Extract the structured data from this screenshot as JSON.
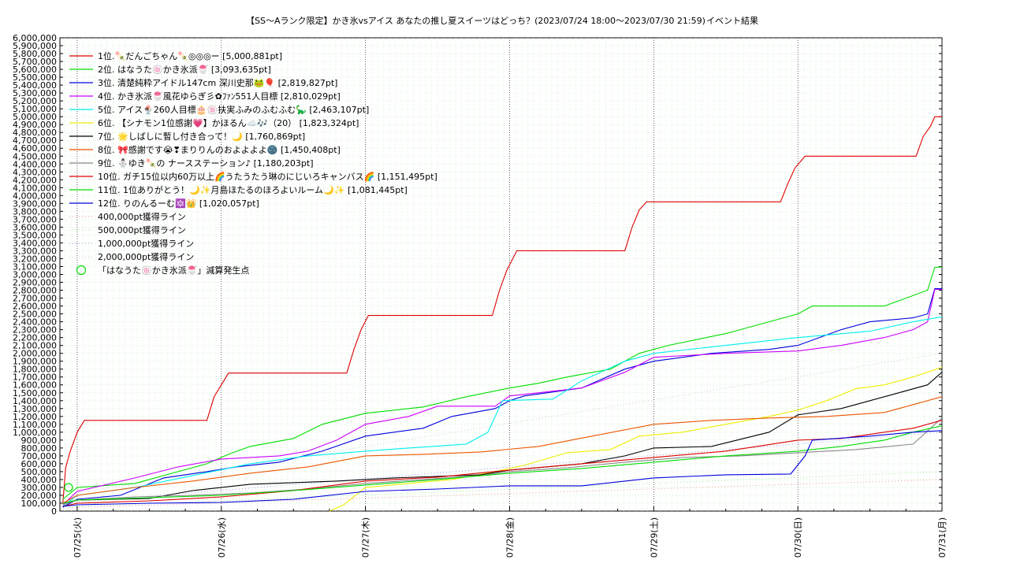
{
  "chart_data": {
    "type": "line",
    "title": "【SS～Aランク限定】かき氷vsアイス あなたの推し夏スイーツはどっち？(2023/07/24 18:00～2023/07/30 21:59)",
    "subtitle": "イベント結果",
    "xlabel": "",
    "ylabel": "",
    "x_ticks": [
      "07/25(火)",
      "07/26(水)",
      "07/27(木)",
      "07/28(金)",
      "07/29(土)",
      "07/30(日)",
      "07/31(月)"
    ],
    "xlim": [
      -0.12,
      6.0
    ],
    "ylim": [
      0,
      6000000
    ],
    "y_step": 100000,
    "grid": true,
    "legend_position": "top-left",
    "series": [
      {
        "name": "1位.🍡だんごちゃん🍡◎◎◎ー [5,000,881pt]",
        "color": "#dd0000",
        "points": [
          [
            -0.1,
            100000
          ],
          [
            -0.08,
            550000
          ],
          [
            -0.05,
            750000
          ],
          [
            -0.02,
            900000
          ],
          [
            0.0,
            1000000
          ],
          [
            0.05,
            1150000
          ],
          [
            0.9,
            1150000
          ],
          [
            0.95,
            1450000
          ],
          [
            1.0,
            1600000
          ],
          [
            1.05,
            1750000
          ],
          [
            1.87,
            1750000
          ],
          [
            1.92,
            2050000
          ],
          [
            1.97,
            2300000
          ],
          [
            2.02,
            2480000
          ],
          [
            2.88,
            2480000
          ],
          [
            2.93,
            2800000
          ],
          [
            2.98,
            3050000
          ],
          [
            3.05,
            3300000
          ],
          [
            3.8,
            3300000
          ],
          [
            3.85,
            3600000
          ],
          [
            3.9,
            3820000
          ],
          [
            3.95,
            3920000
          ],
          [
            4.88,
            3920000
          ],
          [
            4.93,
            4150000
          ],
          [
            4.98,
            4350000
          ],
          [
            5.05,
            4500000
          ],
          [
            5.82,
            4500000
          ],
          [
            5.87,
            4750000
          ],
          [
            5.92,
            4880000
          ],
          [
            5.95,
            5000000
          ],
          [
            6.0,
            5000000
          ]
        ]
      },
      {
        "name": "2位. はなうた🍥かき氷派🍧 [3,093,635pt]",
        "color": "#00dd00",
        "points": [
          [
            -0.1,
            150000
          ],
          [
            0.0,
            300000
          ],
          [
            0.4,
            350000
          ],
          [
            0.7,
            500000
          ],
          [
            0.9,
            600000
          ],
          [
            1.05,
            720000
          ],
          [
            1.2,
            820000
          ],
          [
            1.5,
            920000
          ],
          [
            1.7,
            1100000
          ],
          [
            2.0,
            1240000
          ],
          [
            2.4,
            1320000
          ],
          [
            2.7,
            1450000
          ],
          [
            3.0,
            1560000
          ],
          [
            3.2,
            1620000
          ],
          [
            3.4,
            1700000
          ],
          [
            3.7,
            1800000
          ],
          [
            3.9,
            2000000
          ],
          [
            4.1,
            2100000
          ],
          [
            4.5,
            2250000
          ],
          [
            4.8,
            2400000
          ],
          [
            5.0,
            2500000
          ],
          [
            5.1,
            2600000
          ],
          [
            5.6,
            2600000
          ],
          [
            5.75,
            2700000
          ],
          [
            5.9,
            2800000
          ],
          [
            5.95,
            3090000
          ],
          [
            6.0,
            3093635
          ]
        ]
      },
      {
        "name": "3位. 清楚純粋アイドル147cm 深川史那🐸🎈 [2,819,827pt]",
        "color": "#0000dd",
        "points": [
          [
            -0.1,
            50000
          ],
          [
            0.0,
            150000
          ],
          [
            0.3,
            200000
          ],
          [
            0.6,
            420000
          ],
          [
            0.9,
            500000
          ],
          [
            1.1,
            560000
          ],
          [
            1.4,
            620000
          ],
          [
            1.7,
            760000
          ],
          [
            2.0,
            950000
          ],
          [
            2.4,
            1050000
          ],
          [
            2.6,
            1200000
          ],
          [
            2.9,
            1300000
          ],
          [
            3.0,
            1400000
          ],
          [
            3.1,
            1460000
          ],
          [
            3.5,
            1560000
          ],
          [
            3.8,
            1800000
          ],
          [
            4.0,
            1900000
          ],
          [
            4.4,
            2000000
          ],
          [
            4.8,
            2050000
          ],
          [
            5.0,
            2100000
          ],
          [
            5.3,
            2300000
          ],
          [
            5.5,
            2400000
          ],
          [
            5.8,
            2450000
          ],
          [
            5.9,
            2500000
          ],
          [
            5.95,
            2820000
          ],
          [
            6.0,
            2819827
          ]
        ]
      },
      {
        "name": "4位. かき氷派🍧風花ゆらぎ彡✿ﾌｧﾝ551人目標 [2,810,029pt]",
        "color": "#cc00ff",
        "points": [
          [
            -0.1,
            80000
          ],
          [
            0.0,
            250000
          ],
          [
            0.4,
            420000
          ],
          [
            0.7,
            560000
          ],
          [
            1.0,
            660000
          ],
          [
            1.4,
            700000
          ],
          [
            1.6,
            760000
          ],
          [
            1.8,
            900000
          ],
          [
            2.0,
            1100000
          ],
          [
            2.3,
            1200000
          ],
          [
            2.5,
            1330000
          ],
          [
            2.9,
            1330000
          ],
          [
            3.0,
            1460000
          ],
          [
            3.5,
            1560000
          ],
          [
            3.8,
            1760000
          ],
          [
            4.0,
            1950000
          ],
          [
            4.5,
            2000000
          ],
          [
            5.0,
            2030000
          ],
          [
            5.3,
            2100000
          ],
          [
            5.6,
            2200000
          ],
          [
            5.8,
            2300000
          ],
          [
            5.9,
            2400000
          ],
          [
            5.95,
            2810000
          ],
          [
            6.0,
            2810029
          ]
        ]
      },
      {
        "name": "5位. アイス🍨260人目標🎂🍥扶実ふみのふむふむ🦕 [2,463,107pt]",
        "color": "#00eeee",
        "points": [
          [
            -0.1,
            60000
          ],
          [
            0.0,
            200000
          ],
          [
            0.4,
            300000
          ],
          [
            0.8,
            450000
          ],
          [
            1.2,
            600000
          ],
          [
            1.6,
            700000
          ],
          [
            2.0,
            760000
          ],
          [
            2.3,
            800000
          ],
          [
            2.7,
            850000
          ],
          [
            2.85,
            1000000
          ],
          [
            2.95,
            1400000
          ],
          [
            3.3,
            1420000
          ],
          [
            3.5,
            1650000
          ],
          [
            3.8,
            1900000
          ],
          [
            4.0,
            2000000
          ],
          [
            4.5,
            2100000
          ],
          [
            5.0,
            2200000
          ],
          [
            5.5,
            2280000
          ],
          [
            5.8,
            2400000
          ],
          [
            6.0,
            2463107
          ]
        ]
      },
      {
        "name": "6位. 【シナモン1位感謝💗】かほるん☁️🎶（20） [1,823,324pt]",
        "color": "#eeee00",
        "points": [
          [
            1.75,
            0
          ],
          [
            1.85,
            80000
          ],
          [
            2.0,
            300000
          ],
          [
            2.3,
            350000
          ],
          [
            2.6,
            400000
          ],
          [
            2.9,
            500000
          ],
          [
            3.1,
            580000
          ],
          [
            3.4,
            740000
          ],
          [
            3.7,
            780000
          ],
          [
            3.9,
            950000
          ],
          [
            4.2,
            1000000
          ],
          [
            4.5,
            1100000
          ],
          [
            4.8,
            1200000
          ],
          [
            5.0,
            1280000
          ],
          [
            5.2,
            1400000
          ],
          [
            5.4,
            1550000
          ],
          [
            5.6,
            1600000
          ],
          [
            5.8,
            1700000
          ],
          [
            6.0,
            1823324
          ]
        ]
      },
      {
        "name": "7位. 🌟しばしに暫し付き合って！🌙 [1,760,869pt]",
        "color": "#000000",
        "points": [
          [
            -0.1,
            100000
          ],
          [
            0.0,
            140000
          ],
          [
            0.5,
            160000
          ],
          [
            0.8,
            260000
          ],
          [
            1.2,
            340000
          ],
          [
            1.8,
            380000
          ],
          [
            2.2,
            420000
          ],
          [
            2.8,
            460000
          ],
          [
            3.0,
            520000
          ],
          [
            3.5,
            600000
          ],
          [
            3.8,
            700000
          ],
          [
            4.0,
            800000
          ],
          [
            4.4,
            820000
          ],
          [
            4.8,
            1000000
          ],
          [
            5.0,
            1220000
          ],
          [
            5.3,
            1300000
          ],
          [
            5.5,
            1400000
          ],
          [
            5.7,
            1500000
          ],
          [
            5.9,
            1600000
          ],
          [
            6.0,
            1760869
          ]
        ]
      },
      {
        "name": "8位. 🎀感謝です😭❣まりりんのおよよよよ🌚 [1,450,408pt]",
        "color": "#ee5500",
        "points": [
          [
            -0.1,
            100000
          ],
          [
            0.0,
            200000
          ],
          [
            0.4,
            300000
          ],
          [
            0.8,
            380000
          ],
          [
            1.2,
            480000
          ],
          [
            1.6,
            560000
          ],
          [
            2.0,
            700000
          ],
          [
            2.4,
            720000
          ],
          [
            2.8,
            750000
          ],
          [
            3.2,
            820000
          ],
          [
            3.6,
            960000
          ],
          [
            4.0,
            1100000
          ],
          [
            4.4,
            1150000
          ],
          [
            4.8,
            1180000
          ],
          [
            5.2,
            1200000
          ],
          [
            5.6,
            1250000
          ],
          [
            5.8,
            1350000
          ],
          [
            6.0,
            1450408
          ]
        ]
      },
      {
        "name": "9位. ⛄ゆき🍡の ナースステーション♪ [1,180,203pt]",
        "color": "#888888",
        "points": [
          [
            -0.1,
            80000
          ],
          [
            0.0,
            140000
          ],
          [
            0.4,
            180000
          ],
          [
            0.8,
            200000
          ],
          [
            1.2,
            230000
          ],
          [
            1.6,
            280000
          ],
          [
            2.0,
            350000
          ],
          [
            2.4,
            400000
          ],
          [
            2.8,
            450000
          ],
          [
            3.0,
            500000
          ],
          [
            3.4,
            550000
          ],
          [
            3.8,
            620000
          ],
          [
            4.2,
            680000
          ],
          [
            4.6,
            700000
          ],
          [
            5.0,
            740000
          ],
          [
            5.4,
            780000
          ],
          [
            5.8,
            850000
          ],
          [
            5.95,
            1100000
          ],
          [
            6.0,
            1180203
          ]
        ]
      },
      {
        "name": "10位. ガチ15位以内60万以上🌈うたうたう琳のにじいろキャンバス🌈 [1,151,495pt]",
        "color": "#dd0000",
        "points": [
          [
            -0.1,
            60000
          ],
          [
            0.0,
            100000
          ],
          [
            0.5,
            130000
          ],
          [
            1.0,
            180000
          ],
          [
            1.5,
            260000
          ],
          [
            2.0,
            380000
          ],
          [
            2.5,
            430000
          ],
          [
            3.0,
            520000
          ],
          [
            3.5,
            600000
          ],
          [
            4.0,
            680000
          ],
          [
            4.5,
            760000
          ],
          [
            5.0,
            900000
          ],
          [
            5.3,
            920000
          ],
          [
            5.6,
            1000000
          ],
          [
            5.8,
            1050000
          ],
          [
            6.0,
            1151495
          ]
        ]
      },
      {
        "name": "11位. 1位ありがとう！🌙✨月島ほたるのほろよいルーム🌙✨ [1,081,445pt]",
        "color": "#00dd00",
        "points": [
          [
            -0.1,
            100000
          ],
          [
            0.0,
            140000
          ],
          [
            0.5,
            170000
          ],
          [
            1.0,
            200000
          ],
          [
            1.5,
            260000
          ],
          [
            2.0,
            330000
          ],
          [
            2.5,
            400000
          ],
          [
            3.0,
            480000
          ],
          [
            3.5,
            540000
          ],
          [
            4.0,
            620000
          ],
          [
            4.5,
            700000
          ],
          [
            5.0,
            760000
          ],
          [
            5.3,
            820000
          ],
          [
            5.6,
            900000
          ],
          [
            5.8,
            1000000
          ],
          [
            6.0,
            1081445
          ]
        ]
      },
      {
        "name": "12位. りのんるーむ🔯👑 [1,020,057pt]",
        "color": "#0000dd",
        "points": [
          [
            -0.1,
            60000
          ],
          [
            0.0,
            80000
          ],
          [
            0.5,
            100000
          ],
          [
            1.0,
            110000
          ],
          [
            1.5,
            150000
          ],
          [
            2.0,
            250000
          ],
          [
            2.5,
            280000
          ],
          [
            3.0,
            320000
          ],
          [
            3.5,
            320000
          ],
          [
            4.0,
            420000
          ],
          [
            4.5,
            460000
          ],
          [
            4.95,
            470000
          ],
          [
            5.05,
            700000
          ],
          [
            5.1,
            900000
          ],
          [
            5.5,
            950000
          ],
          [
            5.8,
            1000000
          ],
          [
            6.0,
            1020057
          ]
        ]
      }
    ],
    "reference_lines": [
      {
        "name": "400,000pt獲得ライン",
        "color": "#ee9999",
        "value": 400000
      },
      {
        "name": "500,000pt獲得ライン",
        "color": "#99ee99",
        "value": 500000
      },
      {
        "name": "1,000,000pt獲得ライン",
        "color": "#9999ee",
        "value": 1000000
      },
      {
        "name": "2,000,000pt獲得ライン",
        "color": "#cccccc",
        "value": 2000000
      }
    ],
    "marker_legend": {
      "name": "「はなうた🍥かき氷派🍧」減算発生点",
      "color": "#00dd00"
    },
    "markers": [
      [
        -0.06,
        300000
      ]
    ]
  }
}
